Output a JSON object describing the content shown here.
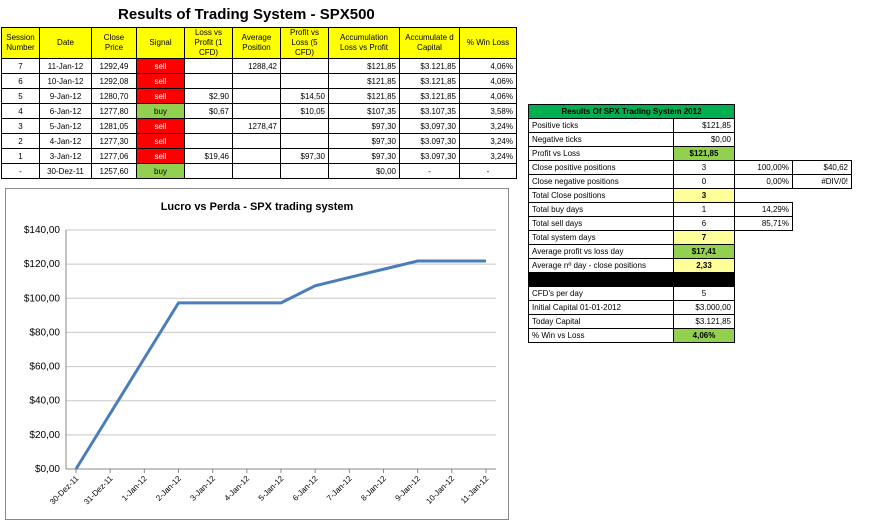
{
  "title": "Results of Trading System -  SPX500",
  "table": {
    "headers": [
      "Session Number",
      "Date",
      "Close Price",
      "Signal",
      "Loss vs Profit (1 CFD)",
      "Average Position",
      "Profit vs Loss (5 CFD)",
      "Accumulation Loss vs Profit",
      "Accumulate d Capital",
      "% Win Loss"
    ],
    "rows": [
      [
        "7",
        "11-Jan-12",
        "1292,49",
        "sell",
        "",
        "1288,42",
        "",
        "$121,85",
        "$3.121,85",
        "4,06%"
      ],
      [
        "6",
        "10-Jan-12",
        "1292,08",
        "sell",
        "",
        "",
        "",
        "$121,85",
        "$3.121,85",
        "4,06%"
      ],
      [
        "5",
        "9-Jan-12",
        "1280,70",
        "sell",
        "$2,90",
        "",
        "$14,50",
        "$121,85",
        "$3.121,85",
        "4,06%"
      ],
      [
        "4",
        "6-Jan-12",
        "1277,80",
        "buy",
        "$0,67",
        "",
        "$10,05",
        "$107,35",
        "$3.107,35",
        "3,58%"
      ],
      [
        "3",
        "5-Jan-12",
        "1281,05",
        "sell",
        "",
        "1278,47",
        "",
        "$97,30",
        "$3.097,30",
        "3,24%"
      ],
      [
        "2",
        "4-Jan-12",
        "1277,30",
        "sell",
        "",
        "",
        "",
        "$97,30",
        "$3.097,30",
        "3,24%"
      ],
      [
        "1",
        "3-Jan-12",
        "1277,06",
        "sell",
        "$19,46",
        "",
        "$97,30",
        "$97,30",
        "$3.097,30",
        "3,24%"
      ],
      [
        "-",
        "30-Dez-11",
        "1257,60",
        "buy",
        "",
        "",
        "",
        "$0,00",
        "-",
        "-"
      ]
    ]
  },
  "summary": {
    "title": "Results Of SPX Trading System 2012",
    "rows": [
      {
        "label": "Positive ticks",
        "value": "$121,85",
        "c3": "",
        "c4": ""
      },
      {
        "label": "Negative ticks",
        "value": "$0,00",
        "c3": "",
        "c4": ""
      },
      {
        "label": "Profit vs Loss",
        "value": "$121,85",
        "c3": "",
        "c4": "",
        "style": "green"
      },
      {
        "label": "Close positive positions",
        "value": "3",
        "c3": "100,00%",
        "c4": "$40,62"
      },
      {
        "label": "Close negative positions",
        "value": "0",
        "c3": "0,00%",
        "c4": "#DIV/0!"
      },
      {
        "label": "Total Close positions",
        "value": "3",
        "c3": "",
        "c4": "",
        "style": "yellow"
      },
      {
        "label": "Total buy days",
        "value": "1",
        "c3": "14,29%",
        "c4": ""
      },
      {
        "label": "Total sell days",
        "value": "6",
        "c3": "85,71%",
        "c4": ""
      },
      {
        "label": "Total system days",
        "value": "7",
        "c3": "",
        "c4": "",
        "style": "yellow"
      },
      {
        "label": "Average profit vs loss day",
        "value": "$17,41",
        "c3": "",
        "c4": "",
        "style": "green"
      },
      {
        "label": "Average nº day - close positions",
        "value": "2,33",
        "c3": "",
        "c4": "",
        "style": "yellow"
      },
      {
        "label": "",
        "value": "",
        "c3": "",
        "c4": "",
        "style": "black"
      },
      {
        "label": "CFD's per day",
        "value": "5",
        "c3": "",
        "c4": ""
      },
      {
        "label": "Initial Capital 01-01-2012",
        "value": "$3.000,00",
        "c3": "",
        "c4": ""
      },
      {
        "label": "Today Capital",
        "value": "$3.121,85",
        "c3": "",
        "c4": ""
      },
      {
        "label": "% Win vs Loss",
        "value": "4,06%",
        "c3": "",
        "c4": "",
        "style": "green"
      }
    ]
  },
  "chart_data": {
    "type": "line",
    "title": "Lucro vs Perda - SPX trading system",
    "categories": [
      "30-Dez-11",
      "31-Dez-11",
      "1-Jan-12",
      "2-Jan-12",
      "3-Jan-12",
      "4-Jan-12",
      "5-Jan-12",
      "6-Jan-12",
      "7-Jan-12",
      "8-Jan-12",
      "9-Jan-12",
      "10-Jan-12",
      "11-Jan-12"
    ],
    "series": [
      {
        "values": [
          0,
          32.43,
          64.87,
          97.3,
          97.3,
          97.3,
          97.3,
          107.35,
          112.2,
          117.02,
          121.85,
          121.85,
          121.85
        ],
        "color": "#4a7ebb"
      }
    ],
    "ylim": [
      0,
      140
    ],
    "yticks": [
      "$0,00",
      "$20,00",
      "$40,00",
      "$60,00",
      "$80,00",
      "$100,00",
      "$120,00",
      "$140,00"
    ],
    "grid": true
  }
}
